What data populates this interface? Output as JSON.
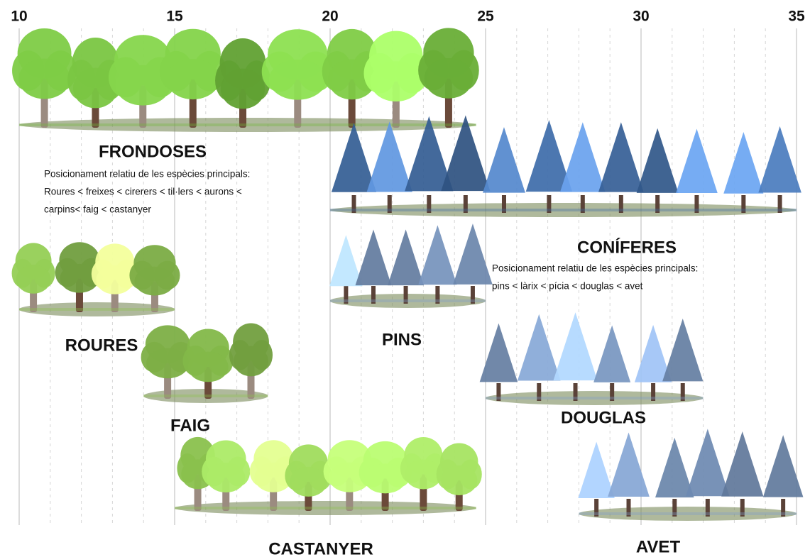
{
  "chart_data": {
    "type": "range",
    "xlim": [
      10,
      35
    ],
    "xticks": [
      10,
      15,
      20,
      25,
      30,
      35
    ],
    "minor_xticks": [
      11,
      12,
      13,
      14,
      16,
      17,
      18,
      19,
      21,
      22,
      23,
      24,
      26,
      27,
      28,
      29,
      31,
      32,
      33,
      34
    ],
    "grid": true,
    "groups": [
      {
        "name": "FRONDOSES",
        "start": 10,
        "end": 24.7,
        "kind": "broadleaf",
        "color": "#6fb83a",
        "description": [
          "Posicionament relatiu de les espècies principals:",
          "Roures < freixes < cirerers < til·lers < aurons <",
          "carpins< faig < castanyer"
        ]
      },
      {
        "name": "CONÍFERES",
        "start": 20,
        "end": 35,
        "kind": "conifer",
        "color": "#3c6aa6",
        "description": [
          "Posicionament relatiu de les espècies principals:",
          "pins < làrix < pícia < douglas < avet"
        ]
      },
      {
        "name": "ROURES",
        "start": 10,
        "end": 15,
        "kind": "broadleaf",
        "color": "#8cc44e"
      },
      {
        "name": "FAIG",
        "start": 14,
        "end": 18,
        "kind": "broadleaf",
        "color": "#8cc44e"
      },
      {
        "name": "PINS",
        "start": 20,
        "end": 25,
        "kind": "conifer",
        "color": "#7f9fcb"
      },
      {
        "name": "DOUGLAS",
        "start": 25,
        "end": 32,
        "kind": "conifer",
        "color": "#7f9fcb"
      },
      {
        "name": "CASTANYER",
        "start": 15,
        "end": 24.7,
        "kind": "broadleaf",
        "color": "#8cc44e"
      },
      {
        "name": "AVET",
        "start": 28,
        "end": 35,
        "kind": "conifer",
        "color": "#7f9fcb"
      }
    ]
  }
}
